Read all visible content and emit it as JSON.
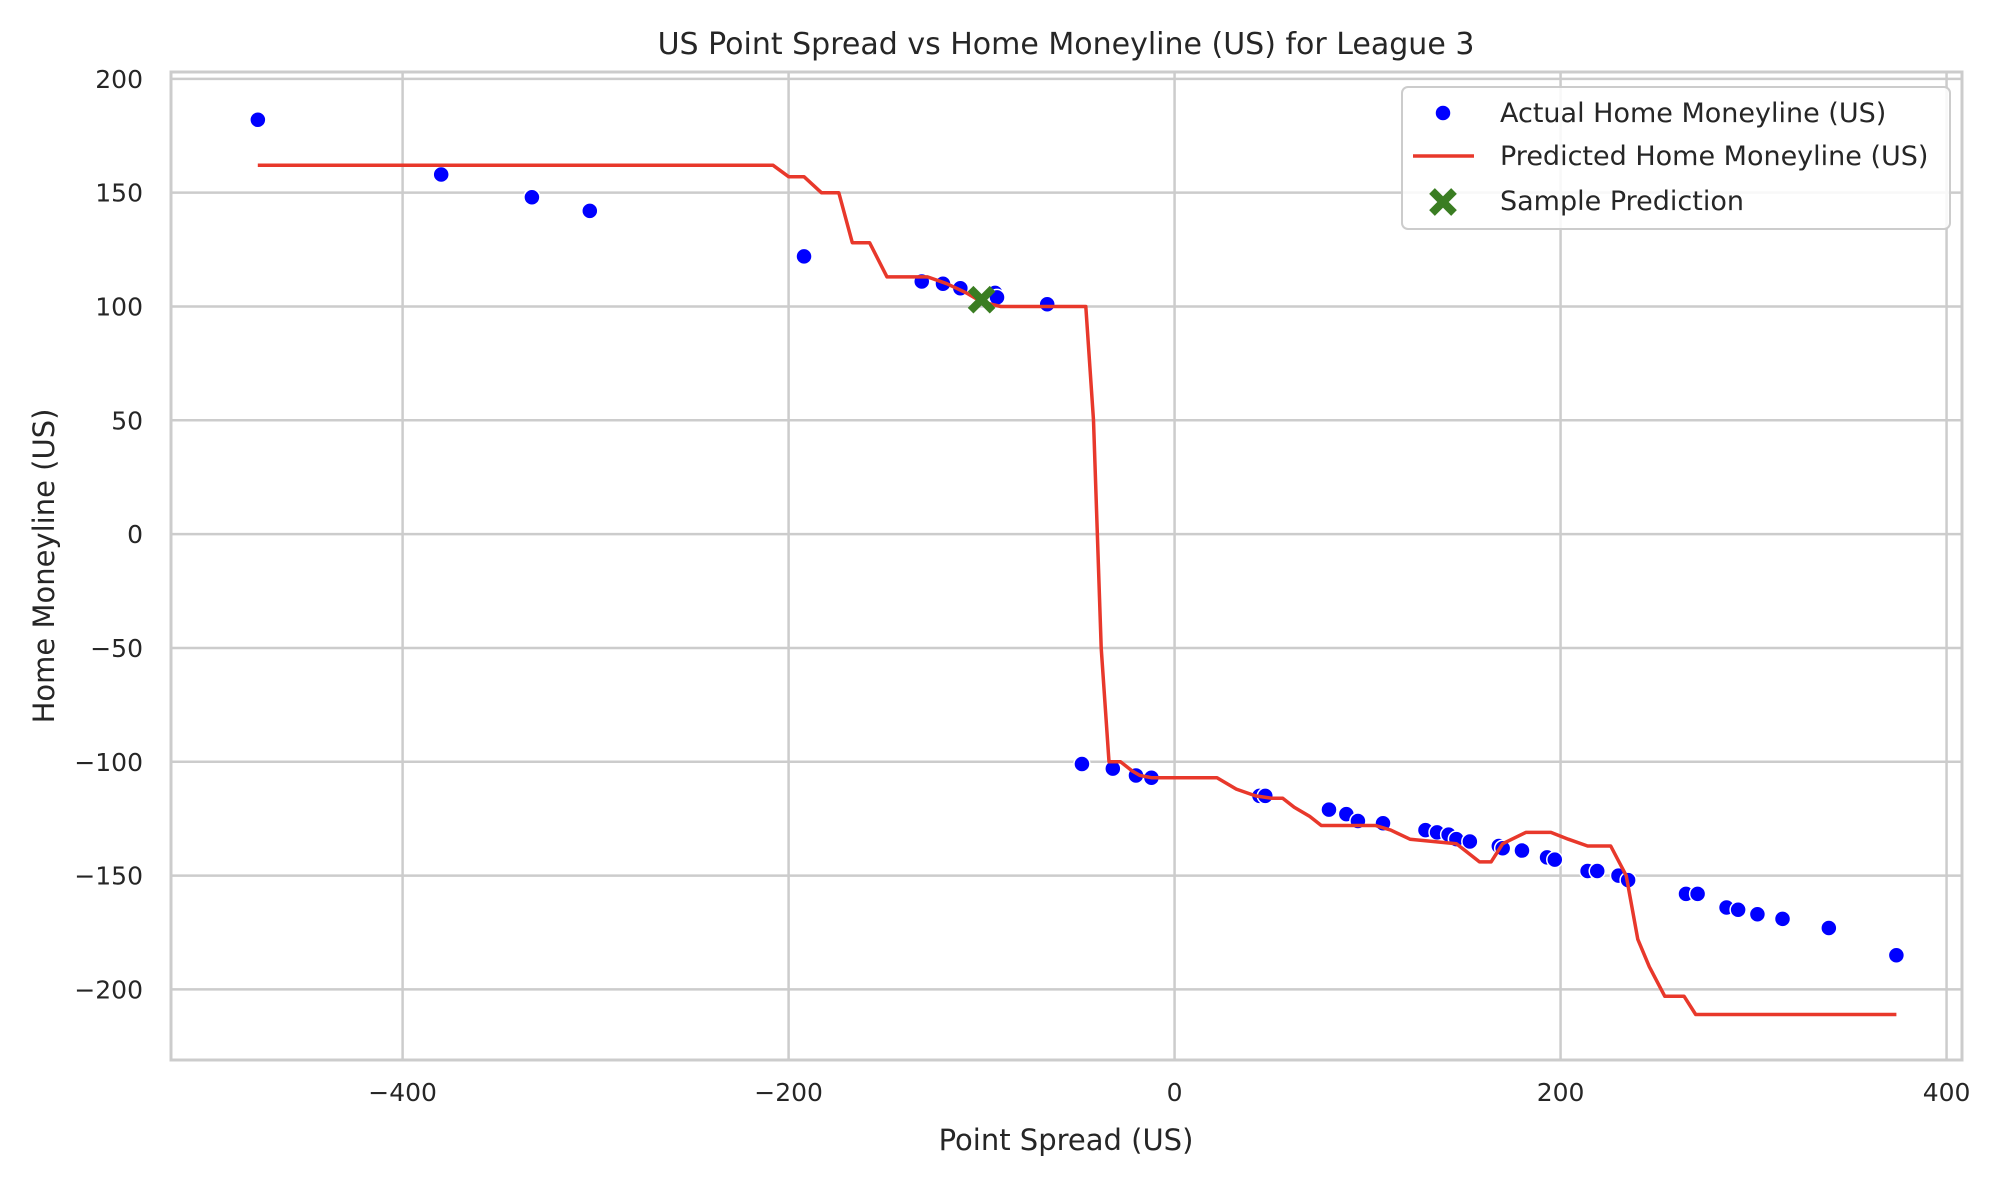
{
  "chart_data": {
    "type": "scatter",
    "title": "US Point Spread vs Home Moneyline (US) for League 3",
    "xlabel": "Point Spread (US)",
    "ylabel": "Home Moneyline (US)",
    "xlim": [
      -520,
      408
    ],
    "ylim": [
      -231,
      203
    ],
    "xticks": [
      -400,
      -200,
      0,
      200,
      400
    ],
    "yticks": [
      200,
      150,
      100,
      50,
      0,
      -50,
      -100,
      -150,
      -200
    ],
    "xtick_labels": [
      "−400",
      "−200",
      "0",
      "200",
      "400"
    ],
    "ytick_labels": [
      "200",
      "150",
      "100",
      "50",
      "0",
      "−50",
      "−100",
      "−150",
      "−200"
    ],
    "grid": true,
    "legend_position": "top-right",
    "legend": [
      {
        "label": "Actual Home Moneyline (US)",
        "marker": "dot",
        "color": "#0000ff"
      },
      {
        "label": "Predicted Home Moneyline (US)",
        "marker": "line",
        "color": "#e8382b"
      },
      {
        "label": "Sample Prediction",
        "marker": "x",
        "color": "#3a7d22"
      }
    ],
    "series": [
      {
        "name": "Actual Home Moneyline (US)",
        "type": "scatter",
        "color": "#0000ff",
        "points": [
          [
            -475,
            182
          ],
          [
            -380,
            158
          ],
          [
            -333,
            148
          ],
          [
            -303,
            142
          ],
          [
            -192,
            122
          ],
          [
            -131,
            111
          ],
          [
            -120,
            110
          ],
          [
            -111,
            108
          ],
          [
            -93,
            106
          ],
          [
            -92,
            104
          ],
          [
            -66,
            101
          ],
          [
            -48,
            -101
          ],
          [
            -32,
            -103
          ],
          [
            -20,
            -106
          ],
          [
            -12,
            -107
          ],
          [
            44,
            -115
          ],
          [
            47,
            -115
          ],
          [
            80,
            -121
          ],
          [
            89,
            -123
          ],
          [
            95,
            -126
          ],
          [
            108,
            -127
          ],
          [
            130,
            -130
          ],
          [
            136,
            -131
          ],
          [
            142,
            -132
          ],
          [
            146,
            -134
          ],
          [
            153,
            -135
          ],
          [
            168,
            -137
          ],
          [
            170,
            -138
          ],
          [
            180,
            -139
          ],
          [
            193,
            -142
          ],
          [
            197,
            -143
          ],
          [
            214,
            -148
          ],
          [
            219,
            -148
          ],
          [
            230,
            -150
          ],
          [
            235,
            -152
          ],
          [
            265,
            -158
          ],
          [
            271,
            -158
          ],
          [
            286,
            -164
          ],
          [
            292,
            -165
          ],
          [
            302,
            -167
          ],
          [
            315,
            -169
          ],
          [
            339,
            -173
          ],
          [
            374,
            -185
          ]
        ]
      },
      {
        "name": "Predicted Home Moneyline (US)",
        "type": "line",
        "color": "#e8382b",
        "points": [
          [
            -475,
            162
          ],
          [
            -208,
            162
          ],
          [
            -200,
            157
          ],
          [
            -192,
            157
          ],
          [
            -183,
            150
          ],
          [
            -174,
            150
          ],
          [
            -167,
            128
          ],
          [
            -158,
            128
          ],
          [
            -149,
            113
          ],
          [
            -128,
            113
          ],
          [
            -118,
            110
          ],
          [
            -108,
            106
          ],
          [
            -100,
            102
          ],
          [
            -90,
            100
          ],
          [
            -46,
            100
          ],
          [
            -42,
            50
          ],
          [
            -38,
            -50
          ],
          [
            -34,
            -100
          ],
          [
            -28,
            -100
          ],
          [
            -22,
            -104
          ],
          [
            -18,
            -106
          ],
          [
            -12,
            -107
          ],
          [
            22,
            -107
          ],
          [
            32,
            -112
          ],
          [
            42,
            -115
          ],
          [
            50,
            -116
          ],
          [
            56,
            -116
          ],
          [
            62,
            -120
          ],
          [
            70,
            -124
          ],
          [
            76,
            -128
          ],
          [
            104,
            -128
          ],
          [
            112,
            -130
          ],
          [
            122,
            -134
          ],
          [
            146,
            -136
          ],
          [
            152,
            -140
          ],
          [
            158,
            -144
          ],
          [
            164,
            -144
          ],
          [
            170,
            -136
          ],
          [
            182,
            -131
          ],
          [
            195,
            -131
          ],
          [
            204,
            -134
          ],
          [
            214,
            -137
          ],
          [
            226,
            -137
          ],
          [
            234,
            -150
          ],
          [
            240,
            -178
          ],
          [
            246,
            -190
          ],
          [
            254,
            -203
          ],
          [
            264,
            -203
          ],
          [
            270,
            -211
          ],
          [
            374,
            -211
          ]
        ]
      },
      {
        "name": "Sample Prediction",
        "type": "scatter",
        "color": "#3a7d22",
        "points": [
          [
            -100,
            103
          ]
        ]
      }
    ]
  }
}
